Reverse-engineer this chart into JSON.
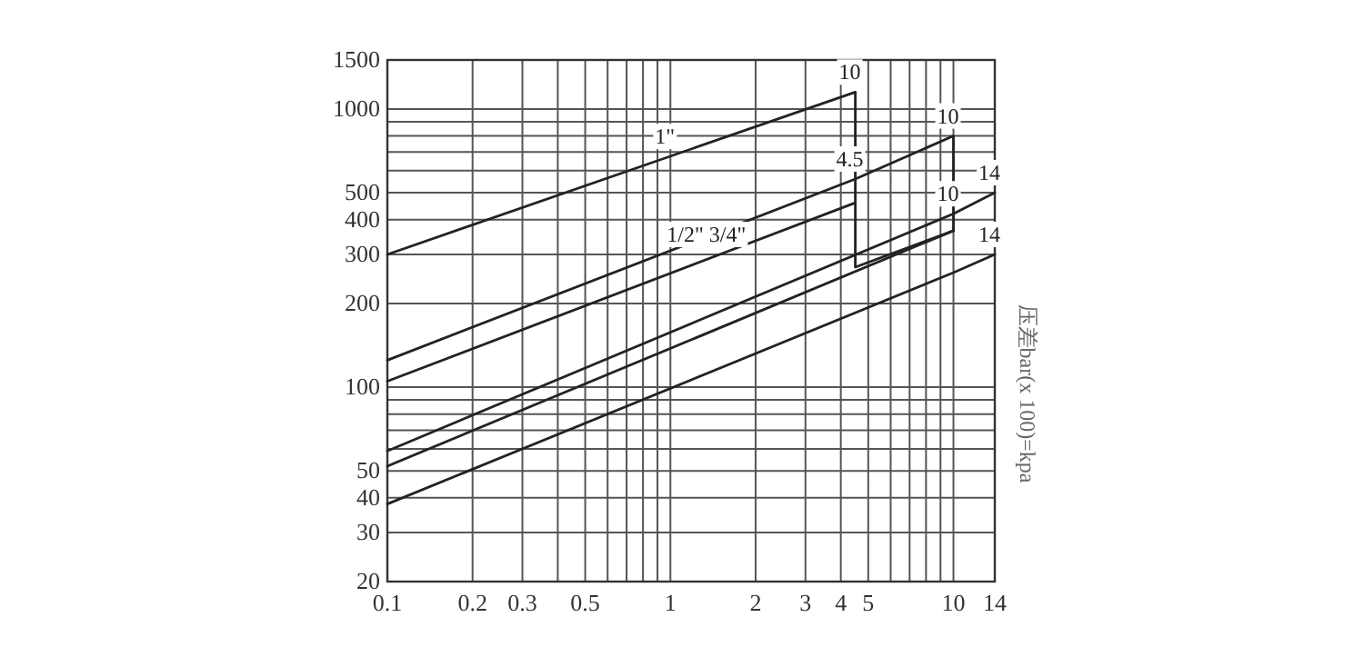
{
  "chart_data": {
    "type": "line",
    "ylabel": "压差bar(x 100)=kpa",
    "log": "xy",
    "grid": true,
    "marker": "none",
    "line_style": "solid",
    "xlim": [
      0.1,
      14
    ],
    "ylim": [
      20,
      1500
    ],
    "xticks": [
      0.1,
      0.2,
      0.3,
      {
        "value": 0.4,
        "label": null
      },
      0.5,
      {
        "value": 0.6,
        "label": null
      },
      {
        "value": 0.7,
        "label": null
      },
      {
        "value": 0.8,
        "label": null
      },
      {
        "value": 0.9,
        "label": null
      },
      1,
      2,
      3,
      4,
      5,
      {
        "value": 6,
        "label": null
      },
      {
        "value": 7,
        "label": null
      },
      {
        "value": 8,
        "label": null
      },
      {
        "value": 9,
        "label": null
      },
      10,
      14
    ],
    "yticks": [
      20,
      30,
      40,
      50,
      {
        "value": 60,
        "label": null
      },
      {
        "value": 70,
        "label": null
      },
      {
        "value": 80,
        "label": null
      },
      {
        "value": 90,
        "label": null
      },
      100,
      200,
      300,
      400,
      500,
      {
        "value": 600,
        "label": null
      },
      {
        "value": 700,
        "label": null
      },
      {
        "value": 800,
        "label": null
      },
      {
        "value": 900,
        "label": null
      },
      1000,
      1500
    ],
    "series": [
      {
        "color": "#222222",
        "x": [
          0.1,
          4.5,
          4.5,
          10
        ],
        "values": [
          300,
          1150,
          270,
          365
        ]
      },
      {
        "color": "#222222",
        "x": [
          0.1,
          4.5,
          10,
          10
        ],
        "values": [
          125,
          560,
          800,
          365
        ]
      },
      {
        "color": "#222222",
        "x": [
          0.1,
          4.5
        ],
        "values": [
          105,
          460
        ]
      },
      {
        "color": "#222222",
        "x": [
          0.1,
          10,
          14
        ],
        "values": [
          59,
          420,
          500
        ]
      },
      {
        "color": "#222222",
        "x": [
          0.1,
          10
        ],
        "values": [
          52,
          365
        ]
      },
      {
        "color": "#222222",
        "x": [
          0.1,
          10,
          14
        ],
        "values": [
          38,
          258,
          300
        ]
      }
    ],
    "annotations": [
      {
        "text": "10",
        "x": 4.5,
        "y": 1150
      },
      {
        "text": "1\"",
        "x": 1,
        "y": 675
      },
      {
        "text": "4.5",
        "x": 4.5,
        "y": 560
      },
      {
        "text": "1/2\" 3/4\"",
        "x": 1.4,
        "y": 300
      },
      {
        "text": "10",
        "x": 10,
        "y": 800
      },
      {
        "text": "10",
        "x": 10,
        "y": 420
      },
      {
        "text": "14",
        "x": 14,
        "y": 500
      },
      {
        "text": "14",
        "x": 14,
        "y": 300
      }
    ]
  }
}
